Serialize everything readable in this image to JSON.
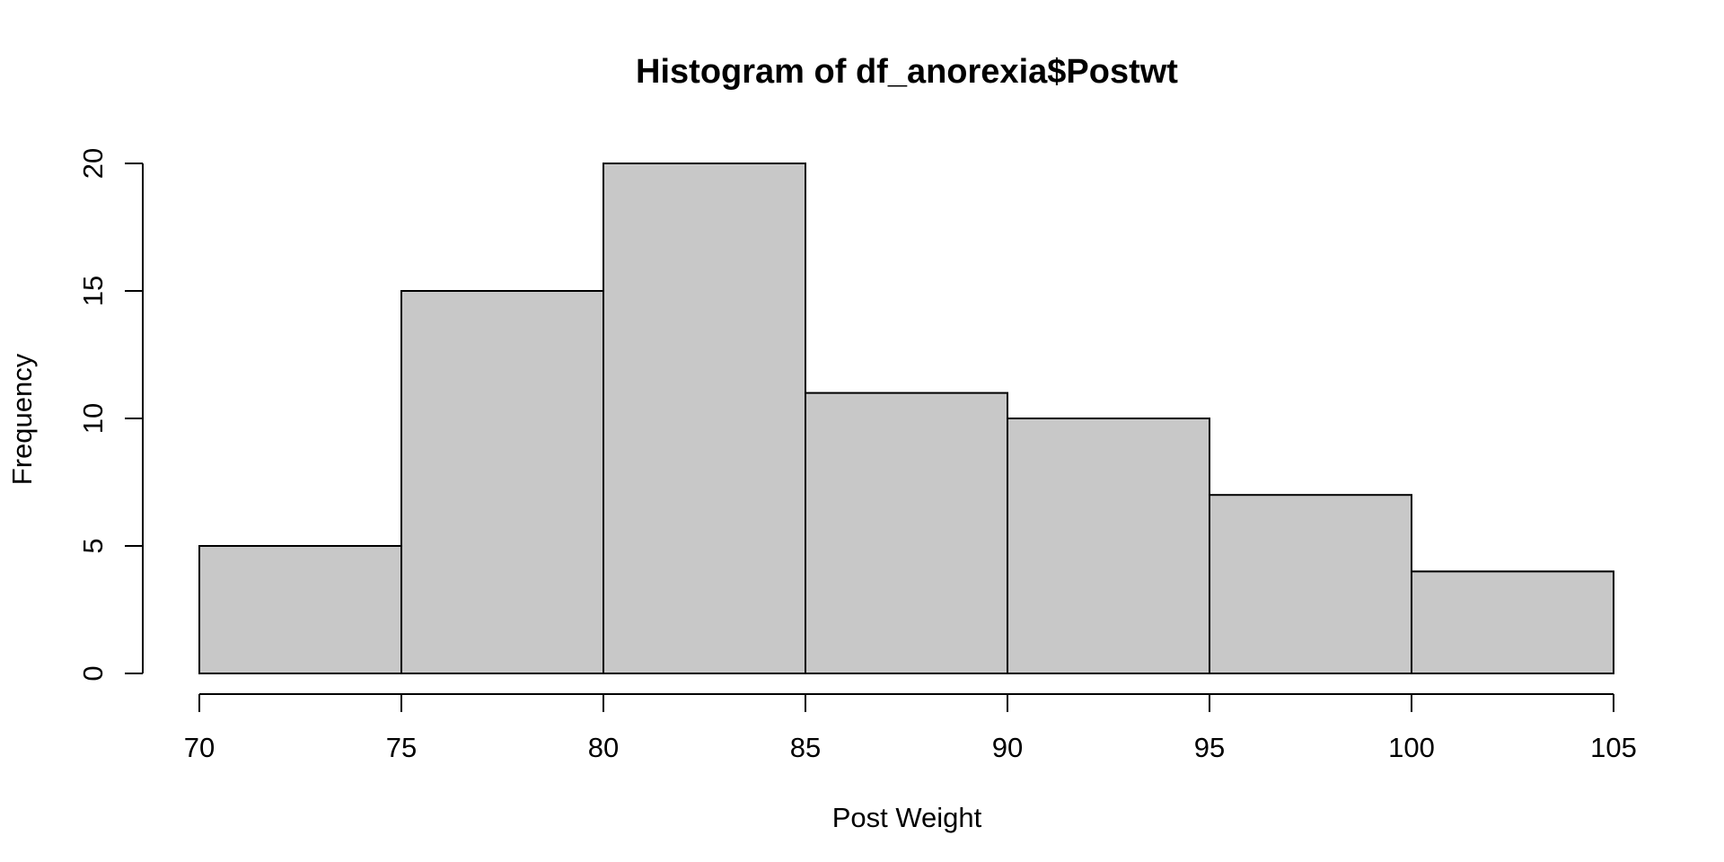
{
  "chart_data": {
    "type": "bar",
    "subtype": "histogram",
    "title": "Histogram of df_anorexia$Postwt",
    "xlabel": "Post Weight",
    "ylabel": "Frequency",
    "bins": [
      {
        "from": 70,
        "to": 75,
        "count": 5
      },
      {
        "from": 75,
        "to": 80,
        "count": 15
      },
      {
        "from": 80,
        "to": 85,
        "count": 20
      },
      {
        "from": 85,
        "to": 90,
        "count": 11
      },
      {
        "from": 90,
        "to": 95,
        "count": 10
      },
      {
        "from": 95,
        "to": 100,
        "count": 7
      },
      {
        "from": 100,
        "to": 105,
        "count": 4
      }
    ],
    "xlim": [
      70,
      105
    ],
    "ylim": [
      0,
      20
    ],
    "x_ticks": [
      "70",
      "75",
      "80",
      "85",
      "90",
      "95",
      "100",
      "105"
    ],
    "y_ticks": [
      "0",
      "5",
      "10",
      "15",
      "20"
    ],
    "grid": false,
    "bar_fill": "#c8c8c8",
    "bar_stroke": "#000000"
  }
}
